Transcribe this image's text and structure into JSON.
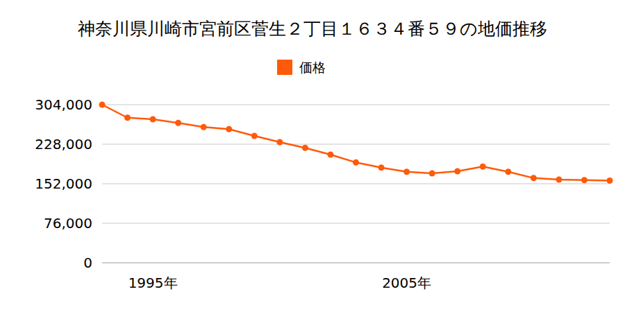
{
  "chart_data": {
    "type": "line",
    "title": "神奈川県川崎市宮前区菅生２丁目１６３４番５９の地価推移",
    "categories": [
      null,
      null,
      "1995年",
      null,
      null,
      null,
      null,
      null,
      null,
      null,
      null,
      null,
      "2005年",
      null,
      null,
      null,
      null,
      null,
      null,
      null,
      null
    ],
    "series": [
      {
        "name": "価格",
        "color": "#ff5a0a",
        "marker": "circle",
        "values": [
          304000,
          279000,
          276000,
          269000,
          261000,
          257000,
          244000,
          232000,
          221000,
          208000,
          193000,
          183000,
          175000,
          172000,
          176000,
          185000,
          175000,
          163000,
          160000,
          159000,
          158000
        ]
      }
    ],
    "ylim": [
      0,
      304000
    ],
    "yticks": [
      0,
      {
        "value": 76000,
        "label": "76,000"
      },
      {
        "value": 152000,
        "label": "152,000"
      },
      {
        "value": 228000,
        "label": "228,000"
      },
      {
        "value": 304000,
        "label": "304,000"
      }
    ],
    "grid": true,
    "legend": "top"
  }
}
